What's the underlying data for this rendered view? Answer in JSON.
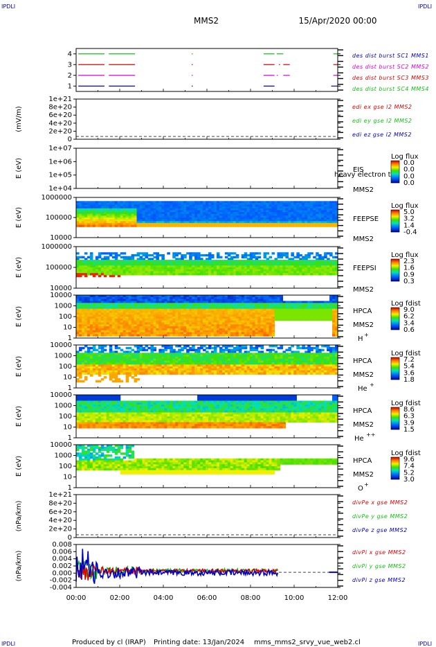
{
  "header": {
    "corner_left": "IPDLI",
    "corner_right": "IPDLI",
    "mission": "MMS2",
    "datetime": "15/Apr/2020 00:00"
  },
  "footer": {
    "produced": "Produced by cl (IRAP)",
    "printing": "Printing date: 13/Jan/2024",
    "file": "mms_mms2_srvy_vue_web2.cl",
    "corner_left": "IPDLI",
    "corner_right": "IPDLI"
  },
  "colors": {
    "red": "#e00000",
    "green": "#10c010",
    "blue": "#0000c8",
    "magenta": "#e000e0"
  },
  "chart_data": [
    {
      "id": "burst",
      "type": "line",
      "ylabel": "",
      "yticks": [
        "4",
        "3",
        "2",
        "1"
      ],
      "legend": [
        {
          "label": "des dist burst SC1 MMS1",
          "color": "blue"
        },
        {
          "label": "des dist burst SC2 MMS2",
          "color": "magenta"
        },
        {
          "label": "des dist burst SC3 MMS3",
          "color": "red"
        },
        {
          "label": "des dist burst SC4 MMS4",
          "color": "green"
        }
      ],
      "series": [
        {
          "y": 4,
          "color": "green",
          "intervals": [
            [
              0.1,
              1.3
            ],
            [
              1.5,
              2.7
            ],
            [
              5.3,
              5.35
            ],
            [
              8.6,
              9.1
            ],
            [
              9.2,
              9.5
            ],
            [
              11.8,
              12
            ]
          ]
        },
        {
          "y": 3,
          "color": "red",
          "intervals": [
            [
              0.1,
              1.3
            ],
            [
              1.5,
              2.7
            ],
            [
              5.3,
              5.35
            ],
            [
              8.6,
              9.1
            ],
            [
              9.3,
              9.35
            ],
            [
              9.5,
              9.8
            ],
            [
              11.8,
              12
            ]
          ]
        },
        {
          "y": 2,
          "color": "magenta",
          "intervals": [
            [
              0.1,
              1.3
            ],
            [
              1.5,
              2.7
            ],
            [
              5.3,
              5.35
            ],
            [
              8.6,
              9.1
            ],
            [
              9.2,
              9.25
            ],
            [
              9.5,
              9.8
            ],
            [
              11.8,
              12
            ]
          ]
        },
        {
          "y": 1,
          "color": "blue",
          "intervals": [
            [
              0.1,
              1.3
            ],
            [
              1.5,
              2.7
            ],
            [
              5.3,
              5.35
            ],
            [
              8.6,
              9.1
            ],
            [
              11.7,
              12
            ]
          ]
        }
      ]
    },
    {
      "id": "edi",
      "type": "line",
      "ylabel": "(mV/m)",
      "yticks": [
        "1e+21",
        "8e+20",
        "6e+20",
        "4e+20",
        "2e+20",
        "0"
      ],
      "legend": [
        {
          "label": "edi ex gse l2 MMS2",
          "color": "red"
        },
        {
          "label": "edi ey gse l2 MMS2",
          "color": "green"
        },
        {
          "label": "edi ez gse l2 MMS2",
          "color": "blue"
        }
      ]
    },
    {
      "id": "eis",
      "type": "heatmap",
      "ylabel": "E (eV)",
      "yticks": [
        "1e+07",
        "1e+06",
        "1e+05",
        "1e+04"
      ],
      "instrument": "EIS",
      "sc": "MMS2",
      "overlap_text": "heavy electron to",
      "cbar_title": "Log flux",
      "cbar_ticks": [
        "0.0",
        "0.0",
        "0.0",
        "0.0"
      ]
    },
    {
      "id": "feepse",
      "type": "heatmap",
      "ylabel": "E (eV)",
      "yticks": [
        "1000000",
        "100000",
        "10000"
      ],
      "instrument": "FEEPSE",
      "sc": "MMS2",
      "cbar_title": "Log flux",
      "cbar_ticks": [
        "5.0",
        "3.2",
        "1.4",
        "-0.4"
      ]
    },
    {
      "id": "feepsi",
      "type": "heatmap",
      "ylabel": "E (eV)",
      "yticks": [
        "1000000",
        "100000",
        "10000"
      ],
      "instrument": "FEEPSI",
      "sc": "MMS2",
      "cbar_title": "Log flux",
      "cbar_ticks": [
        "2.3",
        "1.6",
        "0.9",
        "0.3"
      ]
    },
    {
      "id": "hpca_h",
      "type": "heatmap",
      "ylabel": "E (eV)",
      "yticks": [
        "10000",
        "1000",
        "100",
        "10",
        "1"
      ],
      "instrument": "HPCA",
      "sc": "MMS2",
      "species": "H",
      "charge": "+",
      "cbar_title": "Log fdist",
      "cbar_ticks": [
        "9.0",
        "6.2",
        "3.4",
        "0.6"
      ]
    },
    {
      "id": "hpca_he",
      "type": "heatmap",
      "ylabel": "E (eV)",
      "yticks": [
        "10000",
        "1000",
        "100",
        "10",
        "1"
      ],
      "instrument": "HPCA",
      "sc": "MMS2",
      "species": "He",
      "charge": "+",
      "cbar_title": "Log fdist",
      "cbar_ticks": [
        "7.2",
        "5.4",
        "3.6",
        "1.8"
      ]
    },
    {
      "id": "hpca_hepp",
      "type": "heatmap",
      "ylabel": "E (eV)",
      "yticks": [
        "10000",
        "1000",
        "100",
        "10",
        "1"
      ],
      "instrument": "HPCA",
      "sc": "MMS2",
      "species": "He",
      "charge": "++",
      "cbar_title": "Log fdist",
      "cbar_ticks": [
        "8.6",
        "6.3",
        "3.9",
        "1.5"
      ]
    },
    {
      "id": "hpca_o",
      "type": "heatmap",
      "ylabel": "E (eV)",
      "yticks": [
        "10000",
        "1000",
        "100",
        "10",
        "1"
      ],
      "instrument": "HPCA",
      "sc": "MMS2",
      "species": "O",
      "charge": "+",
      "cbar_title": "Log fdist",
      "cbar_ticks": [
        "9.6",
        "7.4",
        "5.2",
        "3.0"
      ]
    },
    {
      "id": "divpe",
      "type": "line",
      "ylabel": "(nPa/km)",
      "yticks": [
        "1e+21",
        "8e+20",
        "6e+20",
        "4e+20",
        "2e+20",
        "0"
      ],
      "legend": [
        {
          "label": "divPe x gse MMS2",
          "color": "red"
        },
        {
          "label": "divPe y gse MMS2",
          "color": "green"
        },
        {
          "label": "divPe z gse MMS2",
          "color": "blue"
        }
      ]
    },
    {
      "id": "divpi",
      "type": "line",
      "ylabel": "(nPa/km)",
      "yticks": [
        "0.008",
        "0.006",
        "0.004",
        "0.002",
        "0.000",
        "-0.002",
        "-0.004"
      ],
      "legend": [
        {
          "label": "divPi x gse MMS2",
          "color": "red"
        },
        {
          "label": "divPi y gse MMS2",
          "color": "green"
        },
        {
          "label": "divPi z gse MMS2",
          "color": "blue"
        }
      ]
    }
  ],
  "xaxis": {
    "ticks": [
      "00:00",
      "02:00",
      "04:00",
      "06:00",
      "08:00",
      "10:00",
      "12:00"
    ],
    "range_hours": [
      0,
      12
    ]
  }
}
